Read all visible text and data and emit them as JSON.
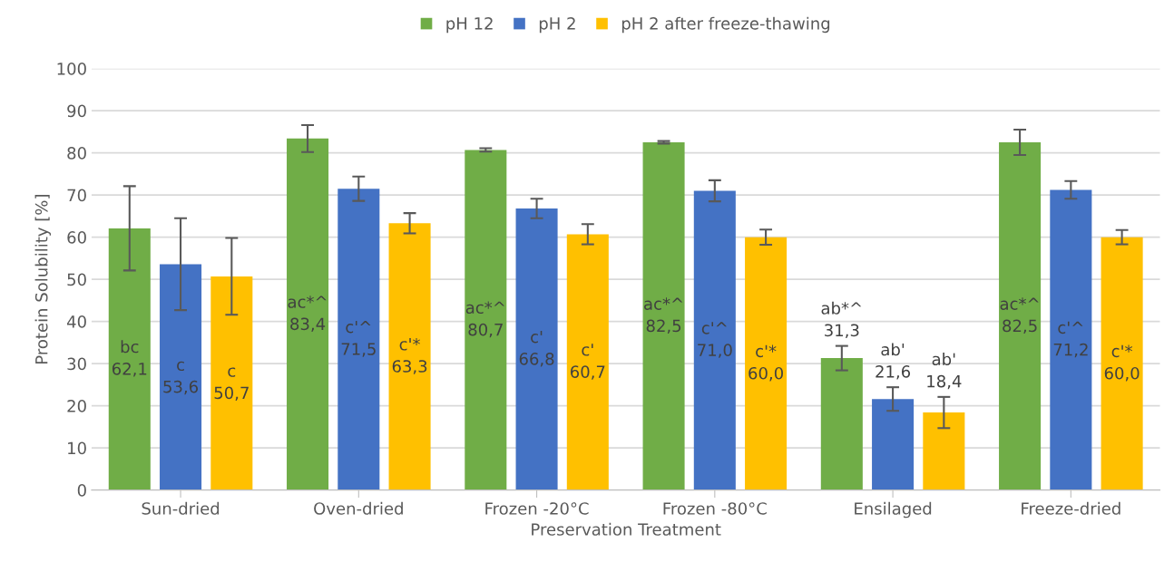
{
  "chart_data": {
    "type": "bar",
    "xlabel": "Preservation Treatment",
    "ylabel": "Protein Solubility [%]",
    "categories": [
      "Sun-dried",
      "Oven-dried",
      "Frozen -20°C",
      "Frozen -80°C",
      "Ensilaged",
      "Freeze-dried"
    ],
    "series": [
      {
        "name": "pH 12",
        "color": "#70ad47",
        "values": [
          62.1,
          83.4,
          80.7,
          82.5,
          31.3,
          82.5
        ],
        "errors": [
          10.0,
          3.2,
          0.4,
          0.3,
          2.9,
          3.0
        ],
        "value_labels": [
          "bc\n62,1",
          "ac*^\n83,4",
          "ac*^\n80,7",
          "ac*^\n82,5",
          "ab*^\n31,3",
          "ac*^\n82,5"
        ]
      },
      {
        "name": "pH 2",
        "color": "#4472c4",
        "values": [
          53.6,
          71.5,
          66.8,
          71.0,
          21.6,
          71.2
        ],
        "errors": [
          10.9,
          2.9,
          2.3,
          2.5,
          2.8,
          2.1
        ],
        "value_labels": [
          "c\n53,6",
          "c'^\n71,5",
          "c'\n66,8",
          "c'^\n71,0",
          "ab'\n21,6",
          "c'^\n71,2"
        ]
      },
      {
        "name": "pH 2 after freeze-thawing",
        "color": "#ffc000",
        "values": [
          50.7,
          63.3,
          60.7,
          60.0,
          18.4,
          60.0
        ],
        "errors": [
          9.1,
          2.4,
          2.4,
          1.8,
          3.7,
          1.7
        ],
        "value_labels": [
          "c\n50,7",
          "c'*\n63,3",
          "c'\n60,7",
          "c'*\n60,0",
          "ab'\n18,4",
          "c'*\n60,0"
        ]
      }
    ],
    "ylim": [
      0,
      100
    ],
    "yticks": [
      0,
      10,
      20,
      30,
      40,
      50,
      60,
      70,
      80,
      90,
      100
    ],
    "grid": "y",
    "legend": "top"
  }
}
